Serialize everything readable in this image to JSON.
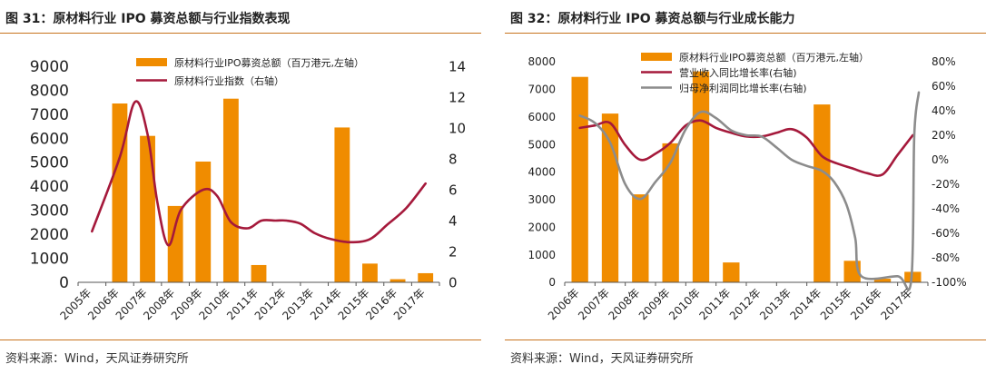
{
  "panels": [
    {
      "title": "图 31：原材料行业 IPO 募资总额与行业指数表现",
      "source": "资料来源：Wind，天风证券研究所",
      "chart_data": {
        "type": "bar",
        "categories": [
          "2005年",
          "2006年",
          "2007年",
          "2008年",
          "2009年",
          "2010年",
          "2011年",
          "2012年",
          "2013年",
          "2014年",
          "2015年",
          "2016年",
          "2017年"
        ],
        "y_left": {
          "ylim": [
            0,
            9000
          ],
          "ticks": [
            0,
            1000,
            2000,
            3000,
            4000,
            5000,
            6000,
            7000,
            8000,
            9000
          ],
          "tick_labels": [
            "0",
            "1000",
            "2000",
            "3000",
            "4000",
            "5000",
            "6000",
            "7000",
            "8000",
            "9000"
          ]
        },
        "y_right": {
          "ylim": [
            0,
            14
          ],
          "ticks": [
            0,
            2,
            4,
            6,
            8,
            10,
            12,
            14
          ],
          "tick_labels": [
            "0",
            "2",
            "4",
            "6",
            "8",
            "10",
            "12",
            "14"
          ]
        },
        "series": [
          {
            "name": "原材料行业IPO募资总额（百万港元,左轴）",
            "type": "bar",
            "axis": "left",
            "color": "#f08c00",
            "values": [
              0,
              7450,
              6100,
              3180,
              5030,
              7650,
              720,
              0,
              0,
              6450,
              780,
              130,
              380
            ]
          },
          {
            "name": "原材料行业指数（右轴）",
            "type": "line",
            "axis": "right",
            "color": "#a5193b",
            "smooth": true,
            "x": [
              0,
              1,
              1.55,
              2,
              2.35,
              2.75,
              3.2,
              4,
              4.5,
              5,
              5.6,
              6.1,
              6.6,
              7,
              7.5,
              8,
              8.6,
              9.3,
              10,
              10.6,
              11.3,
              12
            ],
            "values": [
              3.3,
              8.1,
              11.7,
              9.6,
              5.2,
              2.4,
              4.7,
              6.0,
              5.6,
              3.9,
              3.5,
              4.0,
              4.0,
              4.0,
              3.8,
              3.2,
              2.8,
              2.6,
              2.8,
              3.7,
              4.8,
              6.4
            ]
          }
        ],
        "legend": "top"
      }
    },
    {
      "title": "图 32：原材料行业 IPO 募资总额与行业成长能力",
      "source": "资料来源：Wind，天风证券研究所",
      "chart_data": {
        "type": "bar",
        "categories": [
          "2006年",
          "2007年",
          "2008年",
          "2009年",
          "2010年",
          "2011年",
          "2012年",
          "2013年",
          "2014年",
          "2015年",
          "2016年",
          "2017年"
        ],
        "y_left": {
          "ylim": [
            0,
            8000
          ],
          "ticks": [
            0,
            1000,
            2000,
            3000,
            4000,
            5000,
            6000,
            7000,
            8000
          ],
          "tick_labels": [
            "0",
            "1000",
            "2000",
            "3000",
            "4000",
            "5000",
            "6000",
            "7000",
            "8000"
          ]
        },
        "y_right": {
          "ylim": [
            -100,
            80
          ],
          "ticks": [
            -100,
            -80,
            -60,
            -40,
            -20,
            0,
            20,
            40,
            60,
            80
          ],
          "tick_labels": [
            "-100%",
            "-80%",
            "-60%",
            "-40%",
            "-20%",
            "0%",
            "20%",
            "40%",
            "60%",
            "80%"
          ]
        },
        "series": [
          {
            "name": "原材料行业IPO募资总额（百万港元,左轴）",
            "type": "bar",
            "axis": "left",
            "color": "#f08c00",
            "values": [
              7450,
              6120,
              3190,
              5040,
              7650,
              720,
              0,
              0,
              6450,
              780,
              130,
              380
            ]
          },
          {
            "name": "营业收入同比增长率(右轴)",
            "type": "line",
            "axis": "right",
            "color": "#a5193b",
            "smooth": true,
            "x": [
              0,
              0.5,
              1,
              1.5,
              2,
              2.5,
              3,
              3.5,
              4,
              4.5,
              5,
              5.5,
              6,
              6.5,
              7,
              7.5,
              8,
              8.5,
              9,
              9.5,
              10,
              10.5,
              11
            ],
            "values": [
              26,
              28,
              30,
              12,
              0,
              5,
              14,
              28,
              32,
              26,
              22,
              19,
              19,
              22,
              25,
              18,
              3,
              -3,
              -7,
              -11,
              -12,
              4,
              20
            ]
          },
          {
            "name": "归母净利润同比增长率(右轴)",
            "type": "line",
            "axis": "right",
            "color": "#8c8c8c",
            "smooth": true,
            "x": [
              0,
              0.5,
              1,
              1.5,
              2,
              2.5,
              3,
              3.5,
              4,
              4.5,
              5,
              5.5,
              6,
              6.5,
              7,
              7.5,
              8,
              8.4,
              8.8,
              9.1,
              9.3,
              10.5,
              10.95,
              11.05,
              11.2
            ],
            "values": [
              36,
              30,
              14,
              -20,
              -32,
              -18,
              -2,
              25,
              39,
              34,
              24,
              20,
              19,
              10,
              0,
              -5,
              -9,
              -18,
              -36,
              -64,
              -95,
              -95,
              -98,
              20,
              55
            ]
          }
        ],
        "legend": "top"
      }
    }
  ]
}
